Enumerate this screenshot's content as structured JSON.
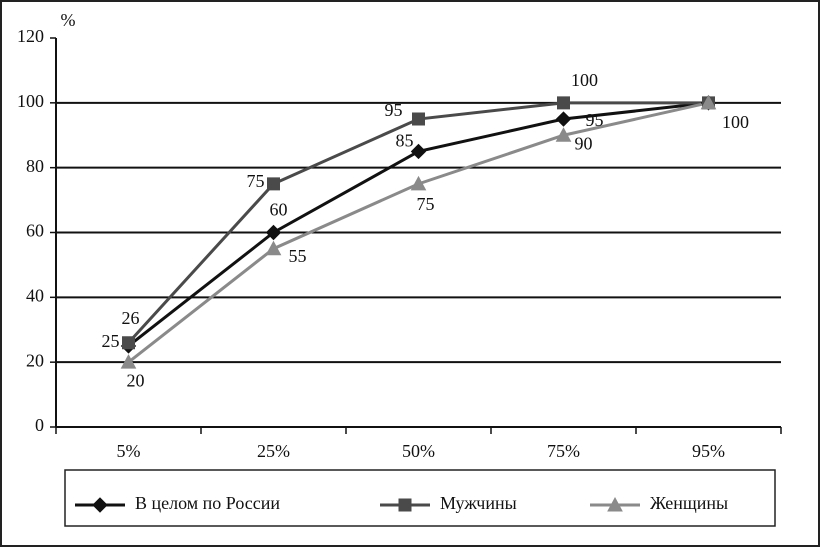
{
  "chart_data": {
    "type": "line",
    "y_axis_label": "%",
    "categories": [
      "5%",
      "25%",
      "50%",
      "75%",
      "95%"
    ],
    "series": [
      {
        "name": "В целом по России",
        "color": "#111111",
        "marker": "diamond",
        "values": [
          25,
          60,
          85,
          95,
          100
        ],
        "value_labels": [
          "25",
          "60",
          "85",
          "95",
          null
        ]
      },
      {
        "name": "Мужчины",
        "color": "#4a4a4a",
        "marker": "square",
        "values": [
          26,
          75,
          95,
          100,
          100
        ],
        "value_labels": [
          "26",
          "75",
          "95",
          "100",
          null
        ]
      },
      {
        "name": "Женщины",
        "color": "#8a8a8a",
        "marker": "triangle",
        "values": [
          20,
          55,
          75,
          90,
          100
        ],
        "value_labels": [
          "20",
          "55",
          "75",
          "90",
          "100"
        ]
      }
    ],
    "ylim": [
      0,
      120
    ],
    "yticks": [
      0,
      20,
      40,
      60,
      80,
      100,
      120
    ],
    "grid": true,
    "legend": "bottom"
  }
}
